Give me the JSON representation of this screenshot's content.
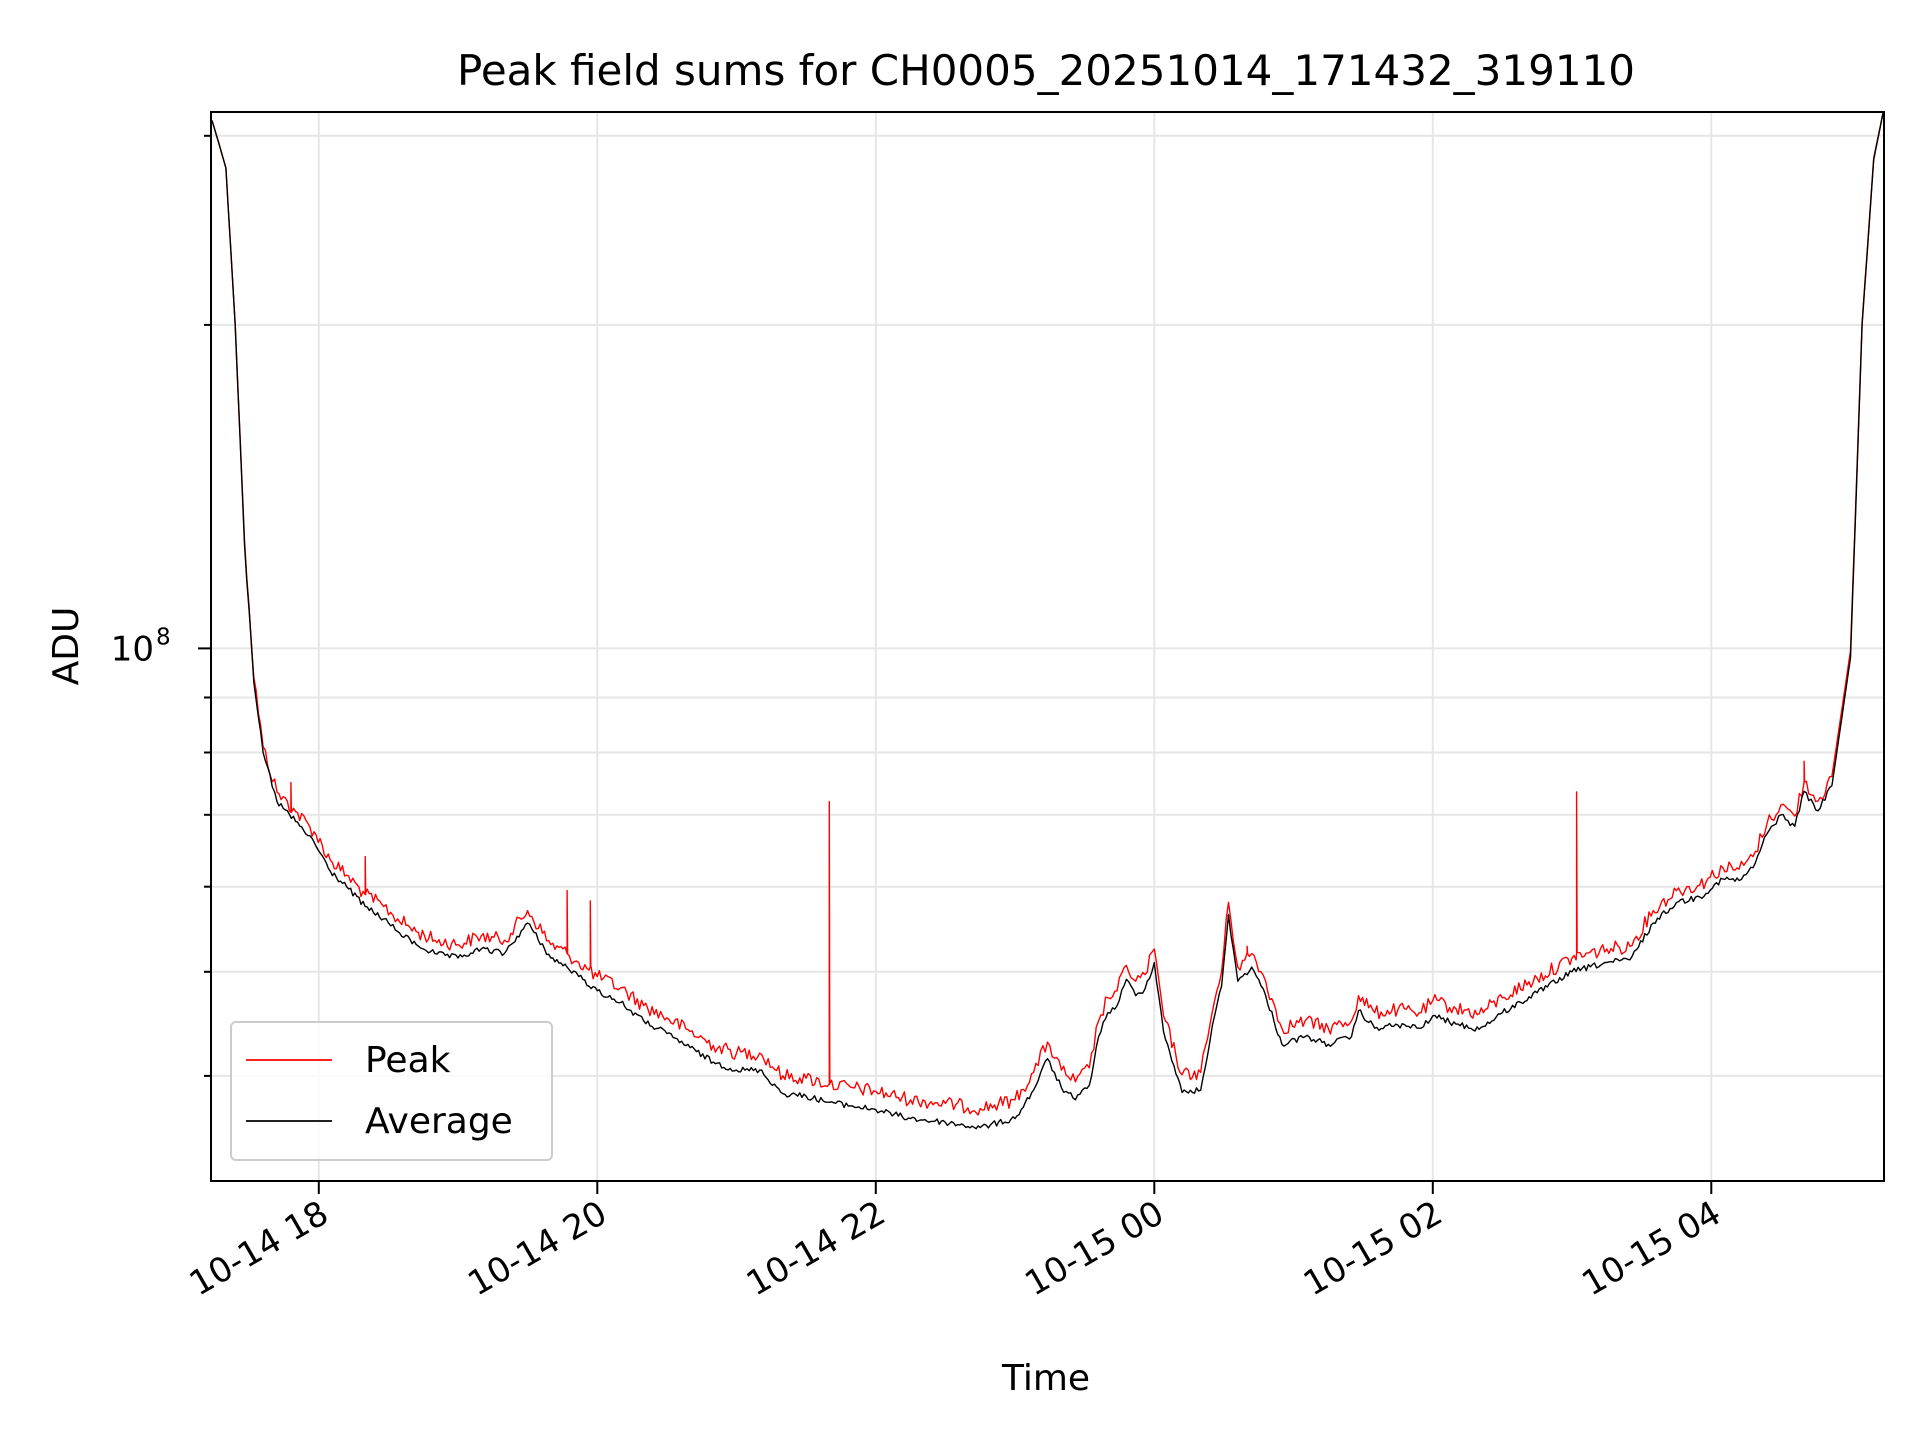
{
  "chart_data": {
    "type": "line",
    "title": "Peak field sums for CH0005_20251014_171432_319110",
    "xlabel": "Time",
    "ylabel": "ADU",
    "y_scale": "log",
    "ylim": [
      32000000,
      315000000
    ],
    "xlim": [
      "2025-10-14 17:14",
      "2025-10-15 05:14"
    ],
    "grid": true,
    "legend_position": "lower-left",
    "x_ticks": [
      {
        "value": "2025-10-14 18:00",
        "label": "10-14 18"
      },
      {
        "value": "2025-10-14 20:00",
        "label": "10-14 20"
      },
      {
        "value": "2025-10-14 22:00",
        "label": "10-14 22"
      },
      {
        "value": "2025-10-15 00:00",
        "label": "10-15 00"
      },
      {
        "value": "2025-10-15 02:00",
        "label": "10-15 02"
      },
      {
        "value": "2025-10-15 04:00",
        "label": "10-15 04"
      }
    ],
    "y_ticks": [
      {
        "value": 100000000,
        "label_base": "10",
        "label_exp": "8"
      }
    ],
    "colors": {
      "peak": "#ff0000",
      "average": "#000000",
      "grid": "#e6e6e6"
    },
    "series": [
      {
        "name": "Average",
        "x": [
          "2025-10-14 17:14",
          "2025-10-14 17:16",
          "2025-10-14 17:20",
          "2025-10-14 17:24",
          "2025-10-14 17:28",
          "2025-10-14 17:32",
          "2025-10-14 17:36",
          "2025-10-14 17:42",
          "2025-10-14 17:50",
          "2025-10-14 17:58",
          "2025-10-14 18:05",
          "2025-10-14 18:12",
          "2025-10-14 18:20",
          "2025-10-14 18:28",
          "2025-10-14 18:34",
          "2025-10-14 18:42",
          "2025-10-14 18:50",
          "2025-10-14 19:00",
          "2025-10-14 19:10",
          "2025-10-14 19:20",
          "2025-10-14 19:30",
          "2025-10-14 19:40",
          "2025-10-14 19:47",
          "2025-10-14 19:52",
          "2025-10-14 20:00",
          "2025-10-14 20:10",
          "2025-10-14 20:20",
          "2025-10-14 20:30",
          "2025-10-14 20:40",
          "2025-10-14 20:50",
          "2025-10-14 21:00",
          "2025-10-14 21:10",
          "2025-10-14 21:20",
          "2025-10-14 21:30",
          "2025-10-14 21:40",
          "2025-10-14 21:50",
          "2025-10-14 22:00",
          "2025-10-14 22:15",
          "2025-10-14 22:30",
          "2025-10-14 22:45",
          "2025-10-14 23:00",
          "2025-10-14 23:08",
          "2025-10-14 23:14",
          "2025-10-14 23:20",
          "2025-10-14 23:26",
          "2025-10-14 23:32",
          "2025-10-14 23:36",
          "2025-10-14 23:40",
          "2025-10-14 23:44",
          "2025-10-14 23:48",
          "2025-10-14 23:52",
          "2025-10-14 23:56",
          "2025-10-15 00:00",
          "2025-10-15 00:04",
          "2025-10-15 00:12",
          "2025-10-15 00:20",
          "2025-10-15 00:26",
          "2025-10-15 00:29",
          "2025-10-15 00:32",
          "2025-10-15 00:36",
          "2025-10-15 00:42",
          "2025-10-15 00:48",
          "2025-10-15 00:55",
          "2025-10-15 01:05",
          "2025-10-15 01:15",
          "2025-10-15 01:25",
          "2025-10-15 01:28",
          "2025-10-15 01:35",
          "2025-10-15 01:45",
          "2025-10-15 01:55",
          "2025-10-15 02:00",
          "2025-10-15 02:10",
          "2025-10-15 02:20",
          "2025-10-15 02:30",
          "2025-10-15 02:45",
          "2025-10-15 03:00",
          "2025-10-15 03:15",
          "2025-10-15 03:25",
          "2025-10-15 03:35",
          "2025-10-15 03:45",
          "2025-10-15 03:55",
          "2025-10-15 04:05",
          "2025-10-15 04:12",
          "2025-10-15 04:18",
          "2025-10-15 04:24",
          "2025-10-15 04:30",
          "2025-10-15 04:36",
          "2025-10-15 04:40",
          "2025-10-15 04:46",
          "2025-10-15 04:52",
          "2025-10-15 05:00",
          "2025-10-15 05:05",
          "2025-10-15 05:10",
          "2025-10-15 05:14"
        ],
        "values": [
          310000000,
          300000000,
          280000000,
          200000000,
          125000000,
          93000000,
          80000000,
          72000000,
          69000000,
          66000000,
          62000000,
          60000000,
          57500000,
          56000000,
          54500000,
          53000000,
          52000000,
          51500000,
          52500000,
          52000000,
          55500000,
          51500000,
          50500000,
          49500000,
          48000000,
          46800000,
          45000000,
          43800000,
          42500000,
          41200000,
          40500000,
          40500000,
          38500000,
          38300000,
          37800000,
          37500000,
          37200000,
          36500000,
          36200000,
          35800000,
          36500000,
          38800000,
          41500000,
          39000000,
          38000000,
          39200000,
          43500000,
          45800000,
          46500000,
          49200000,
          47500000,
          48200000,
          51000000,
          44000000,
          38600000,
          38800000,
          45500000,
          48500000,
          56500000,
          49000000,
          50500000,
          47500000,
          42800000,
          43500000,
          42800000,
          43500000,
          46000000,
          44300000,
          44600000,
          44300000,
          45500000,
          44700000,
          44200000,
          45800000,
          47800000,
          50000000,
          51000000,
          51300000,
          55500000,
          58000000,
          58700000,
          61000000,
          60800000,
          62500000,
          67200000,
          70000000,
          68300000,
          73600000,
          70600000,
          74500000,
          98000000,
          200000000,
          285000000,
          315000000
        ]
      },
      {
        "name": "Peak",
        "x": [
          "2025-10-14 17:14",
          "2025-10-14 17:16",
          "2025-10-14 17:20",
          "2025-10-14 17:24",
          "2025-10-14 17:28",
          "2025-10-14 17:32",
          "2025-10-14 17:36",
          "2025-10-14 17:42",
          "2025-10-14 17:50",
          "2025-10-14 17:58",
          "2025-10-14 18:05",
          "2025-10-14 18:12",
          "2025-10-14 18:20",
          "2025-10-14 18:28",
          "2025-10-14 18:34",
          "2025-10-14 18:42",
          "2025-10-14 18:50",
          "2025-10-14 19:00",
          "2025-10-14 19:10",
          "2025-10-14 19:20",
          "2025-10-14 19:30",
          "2025-10-14 19:40",
          "2025-10-14 19:47",
          "2025-10-14 19:52",
          "2025-10-14 20:00",
          "2025-10-14 20:10",
          "2025-10-14 20:20",
          "2025-10-14 20:30",
          "2025-10-14 20:40",
          "2025-10-14 20:50",
          "2025-10-14 21:00",
          "2025-10-14 21:10",
          "2025-10-14 21:20",
          "2025-10-14 21:30",
          "2025-10-14 21:40",
          "2025-10-14 21:50",
          "2025-10-14 22:00",
          "2025-10-14 22:15",
          "2025-10-14 22:30",
          "2025-10-14 22:45",
          "2025-10-14 23:00",
          "2025-10-14 23:08",
          "2025-10-14 23:14",
          "2025-10-14 23:20",
          "2025-10-14 23:26",
          "2025-10-14 23:32",
          "2025-10-14 23:36",
          "2025-10-14 23:40",
          "2025-10-14 23:44",
          "2025-10-14 23:48",
          "2025-10-14 23:52",
          "2025-10-14 23:56",
          "2025-10-15 00:00",
          "2025-10-15 00:04",
          "2025-10-15 00:12",
          "2025-10-15 00:20",
          "2025-10-15 00:26",
          "2025-10-15 00:29",
          "2025-10-15 00:32",
          "2025-10-15 00:36",
          "2025-10-15 00:42",
          "2025-10-15 00:48",
          "2025-10-15 00:55",
          "2025-10-15 01:05",
          "2025-10-15 01:15",
          "2025-10-15 01:25",
          "2025-10-15 01:28",
          "2025-10-15 01:35",
          "2025-10-15 01:45",
          "2025-10-15 01:55",
          "2025-10-15 02:00",
          "2025-10-15 02:10",
          "2025-10-15 02:20",
          "2025-10-15 02:30",
          "2025-10-15 02:45",
          "2025-10-15 03:00",
          "2025-10-15 03:15",
          "2025-10-15 03:25",
          "2025-10-15 03:35",
          "2025-10-15 03:45",
          "2025-10-15 03:55",
          "2025-10-15 04:05",
          "2025-10-15 04:12",
          "2025-10-15 04:18",
          "2025-10-15 04:24",
          "2025-10-15 04:30",
          "2025-10-15 04:36",
          "2025-10-15 04:40",
          "2025-10-15 04:46",
          "2025-10-15 04:52",
          "2025-10-15 05:00",
          "2025-10-15 05:05",
          "2025-10-15 05:10",
          "2025-10-15 05:14"
        ],
        "values": [
          310000000,
          300000000,
          280000000,
          200000000,
          126000000,
          94000000,
          81000000,
          73500000,
          70500000,
          67500000,
          63500000,
          61500000,
          59000000,
          57500000,
          56000000,
          54500000,
          53500000,
          53000000,
          54000000,
          53500000,
          57000000,
          53000000,
          52000000,
          51000000,
          49500000,
          48300000,
          46500000,
          45300000,
          44000000,
          42700000,
          42000000,
          42000000,
          40000000,
          39800000,
          39300000,
          39000000,
          38700000,
          38000000,
          37700000,
          37300000,
          38000000,
          40300000,
          43000000,
          40500000,
          39500000,
          40700000,
          45000000,
          47300000,
          48000000,
          50700000,
          49000000,
          49700000,
          52500000,
          45500000,
          40100000,
          40300000,
          47000000,
          50000000,
          58000000,
          50500000,
          52000000,
          49000000,
          44300000,
          45000000,
          44300000,
          45000000,
          47500000,
          45800000,
          46100000,
          45800000,
          47000000,
          46200000,
          45700000,
          47300000,
          49300000,
          51500000,
          52500000,
          52800000,
          57000000,
          59500000,
          60200000,
          62500000,
          62300000,
          64000000,
          68700000,
          71500000,
          69800000,
          75100000,
          72100000,
          76000000,
          99500000,
          201000000,
          286000000,
          315000000
        ]
      }
    ],
    "peak_spikes": [
      {
        "x": "2025-10-14 17:48",
        "value": 75000000
      },
      {
        "x": "2025-10-14 18:20",
        "value": 64000000
      },
      {
        "x": "2025-10-14 19:47",
        "value": 59500000
      },
      {
        "x": "2025-10-14 19:57",
        "value": 58200000
      },
      {
        "x": "2025-10-14 21:40",
        "value": 72000000
      },
      {
        "x": "2025-10-15 00:40",
        "value": 52800000
      },
      {
        "x": "2025-10-15 03:02",
        "value": 73500000
      },
      {
        "x": "2025-10-15 04:40",
        "value": 78500000
      }
    ]
  }
}
